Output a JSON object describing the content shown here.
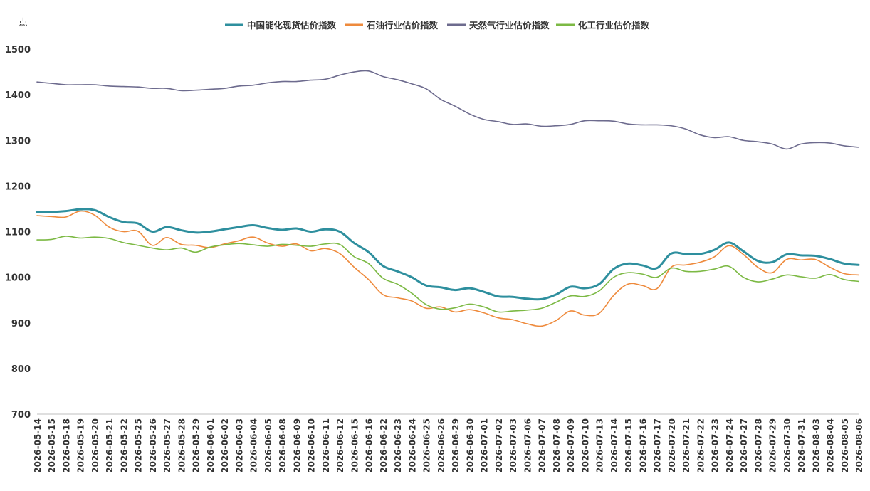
{
  "chart_data": {
    "type": "line",
    "title": "",
    "xlabel": "",
    "ylabel": "点",
    "ylim": [
      700,
      1500
    ],
    "yticks": [
      700,
      800,
      900,
      1000,
      1100,
      1200,
      1300,
      1400,
      1500
    ],
    "grid": false,
    "legend_position": "top-center",
    "categories": [
      "2026-05-14",
      "2026-05-15",
      "2026-05-18",
      "2026-05-19",
      "2026-05-20",
      "2026-05-21",
      "2026-05-22",
      "2026-05-25",
      "2026-05-26",
      "2026-05-27",
      "2026-05-28",
      "2026-05-29",
      "2026-06-01",
      "2026-06-02",
      "2026-06-03",
      "2026-06-04",
      "2026-06-05",
      "2026-06-08",
      "2026-06-09",
      "2026-06-10",
      "2026-06-11",
      "2026-06-12",
      "2026-06-15",
      "2026-06-16",
      "2026-06-22",
      "2026-06-23",
      "2026-06-24",
      "2026-06-25",
      "2026-06-26",
      "2026-06-29",
      "2026-06-30",
      "2026-07-01",
      "2026-07-02",
      "2026-07-03",
      "2026-07-06",
      "2026-07-07",
      "2026-07-08",
      "2026-07-09",
      "2026-07-10",
      "2026-07-13",
      "2026-07-14",
      "2026-07-15",
      "2026-07-16",
      "2026-07-17",
      "2026-07-20",
      "2026-07-21",
      "2026-07-22",
      "2026-07-23",
      "2026-07-24",
      "2026-07-27",
      "2026-07-28",
      "2026-07-29",
      "2026-07-30",
      "2026-07-31",
      "2026-08-03",
      "2026-08-04",
      "2026-08-05",
      "2026-08-06"
    ],
    "series": [
      {
        "name": "中国能化现货估价指数",
        "color": "#2e8f9e",
        "values": [
          1143,
          1143,
          1145,
          1149,
          1147,
          1132,
          1121,
          1118,
          1100,
          1110,
          1103,
          1098,
          1100,
          1105,
          1110,
          1114,
          1108,
          1104,
          1107,
          1100,
          1105,
          1100,
          1075,
          1055,
          1025,
          1013,
          1000,
          982,
          978,
          972,
          976,
          968,
          958,
          957,
          953,
          952,
          962,
          979,
          976,
          985,
          1018,
          1030,
          1026,
          1020,
          1052,
          1051,
          1051,
          1060,
          1076,
          1057,
          1036,
          1033,
          1050,
          1048,
          1047,
          1040,
          1030,
          1027
        ]
      },
      {
        "name": "石油行业估价指数",
        "color": "#ee8a3c",
        "values": [
          1135,
          1133,
          1132,
          1145,
          1136,
          1110,
          1100,
          1101,
          1070,
          1087,
          1072,
          1070,
          1065,
          1073,
          1080,
          1088,
          1075,
          1068,
          1073,
          1058,
          1063,
          1052,
          1022,
          995,
          962,
          955,
          948,
          932,
          935,
          924,
          929,
          922,
          911,
          907,
          898,
          893,
          905,
          926,
          917,
          921,
          960,
          985,
          982,
          975,
          1022,
          1027,
          1033,
          1045,
          1069,
          1050,
          1022,
          1010,
          1039,
          1038,
          1039,
          1022,
          1008,
          1005
        ]
      },
      {
        "name": "天然气行业估价指数",
        "color": "#6d6b8e",
        "values": [
          1428,
          1425,
          1422,
          1422,
          1422,
          1419,
          1418,
          1417,
          1414,
          1414,
          1409,
          1410,
          1412,
          1414,
          1419,
          1421,
          1426,
          1429,
          1429,
          1432,
          1434,
          1443,
          1450,
          1452,
          1440,
          1433,
          1424,
          1413,
          1390,
          1375,
          1358,
          1346,
          1341,
          1335,
          1336,
          1331,
          1332,
          1335,
          1343,
          1343,
          1342,
          1336,
          1334,
          1334,
          1332,
          1325,
          1312,
          1306,
          1308,
          1300,
          1297,
          1292,
          1281,
          1292,
          1295,
          1294,
          1288,
          1285
        ]
      },
      {
        "name": "化工行业估价指数",
        "color": "#7cb944",
        "values": [
          1082,
          1083,
          1090,
          1086,
          1088,
          1085,
          1076,
          1070,
          1064,
          1060,
          1064,
          1055,
          1066,
          1071,
          1074,
          1071,
          1068,
          1072,
          1070,
          1068,
          1073,
          1072,
          1045,
          1030,
          998,
          985,
          965,
          940,
          930,
          933,
          941,
          935,
          924,
          926,
          928,
          932,
          945,
          959,
          958,
          970,
          1000,
          1010,
          1007,
          1000,
          1020,
          1013,
          1013,
          1018,
          1024,
          1000,
          990,
          996,
          1005,
          1001,
          998,
          1006,
          995,
          991
        ]
      }
    ]
  }
}
